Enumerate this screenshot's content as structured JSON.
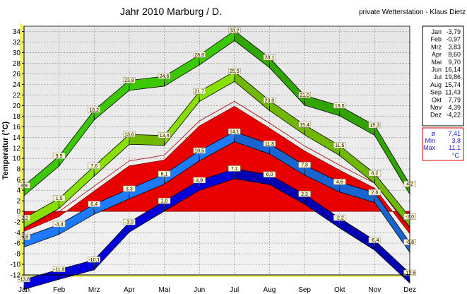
{
  "chart_data": {
    "type": "line",
    "title": "Jahr 2010  Marburg / D.",
    "subtitle": "private Wetterstation - Klaus Dietz",
    "xlabel": "",
    "ylabel": "Temperatur (°C)",
    "ylim": [
      -12,
      35
    ],
    "yticks": [
      34,
      32,
      30,
      28,
      26,
      24,
      22,
      20,
      18,
      16,
      14,
      12,
      10,
      8,
      6,
      4,
      2,
      0,
      -2,
      -4,
      -6,
      -8,
      -10,
      -12
    ],
    "categories": [
      "Jan",
      "Feb",
      "Mrz",
      "Apr",
      "Mai",
      "Jun",
      "Jul",
      "Aug",
      "Sep",
      "Okt",
      "Nov",
      "Dez"
    ],
    "grid": true,
    "series": [
      {
        "key": "absmax",
        "color": "#3cc800",
        "values": [
          3.9,
          9.5,
          18.2,
          23.8,
          24.6,
          28.6,
          33.2,
          28.1,
          21.0,
          19.0,
          15.3,
          4.2
        ],
        "labels": [
          "3,9",
          "9,5",
          "18,2",
          "23,8",
          "24,6",
          "28,6",
          "33,2",
          "28,1",
          "21,0",
          "19,0",
          "15,3",
          "4,2"
        ]
      },
      {
        "key": "meanmax",
        "color": "#88e000",
        "values": [
          -2.2,
          1.5,
          7.6,
          13.6,
          13.4,
          21.7,
          25.5,
          20.0,
          15.4,
          11.5,
          6.2,
          -2.0
        ],
        "labels": [
          "-2,2",
          "1,5",
          "7,6",
          "13,6",
          "13,4",
          "21,7",
          "25,5",
          "20,0",
          "15,4",
          "11,5",
          "6,2",
          "-2,0"
        ]
      },
      {
        "key": "mean",
        "color": "#1e7aff",
        "values": [
          -5.8,
          -3.4,
          0.4,
          3.3,
          6.1,
          10.5,
          14.1,
          11.8,
          7.8,
          4.6,
          2.6,
          -6.8
        ],
        "labels": [
          "-5,8",
          "-3,4",
          "0,4",
          "3,3",
          "6,1",
          "10,5",
          "14,1",
          "11,8",
          "7,8",
          "4,6",
          "2,6",
          "-6,8"
        ]
      },
      {
        "key": "meanmin",
        "color": "#0000d8",
        "values": [
          -13.8,
          -11.9,
          -10.1,
          -3.0,
          1.0,
          4.9,
          7.1,
          6.0,
          2.3,
          -2.2,
          -6.4,
          -12.6
        ],
        "labels": [
          "-13,8",
          "-11,9",
          "-10,1",
          "-3,0",
          "1,0",
          "4,9",
          "7,1",
          "6,0",
          "2,3",
          "-2,2",
          "-6,4",
          "-12,6"
        ]
      }
    ],
    "area": {
      "color": "#e80000",
      "values": [
        -3.79,
        -0.97,
        3.83,
        8.6,
        9.7,
        16.14,
        19.86,
        15.74,
        11.43,
        7.79,
        4.39,
        -4.22
      ]
    },
    "side_table": {
      "rows": [
        {
          "m": "Jan",
          "v": "-3,79"
        },
        {
          "m": "Feb",
          "v": "-0,97"
        },
        {
          "m": "Mrz",
          "v": "3,83"
        },
        {
          "m": "Apr",
          "v": "8,60"
        },
        {
          "m": "Mai",
          "v": "9,70"
        },
        {
          "m": "Jun",
          "v": "16,14"
        },
        {
          "m": "Jul",
          "v": "19,86"
        },
        {
          "m": "Aug",
          "v": "15,74"
        },
        {
          "m": "Sep",
          "v": "11,43"
        },
        {
          "m": "Okt",
          "v": "7,79"
        },
        {
          "m": "Nov",
          "v": "4,39"
        },
        {
          "m": "Dez",
          "v": "-4,22"
        }
      ],
      "stats": [
        {
          "k": "ø",
          "v": "7,41"
        },
        {
          "k": "Min",
          "v": "3,8"
        },
        {
          "k": "Max",
          "v": "11,1"
        }
      ],
      "unit": "°C"
    }
  }
}
